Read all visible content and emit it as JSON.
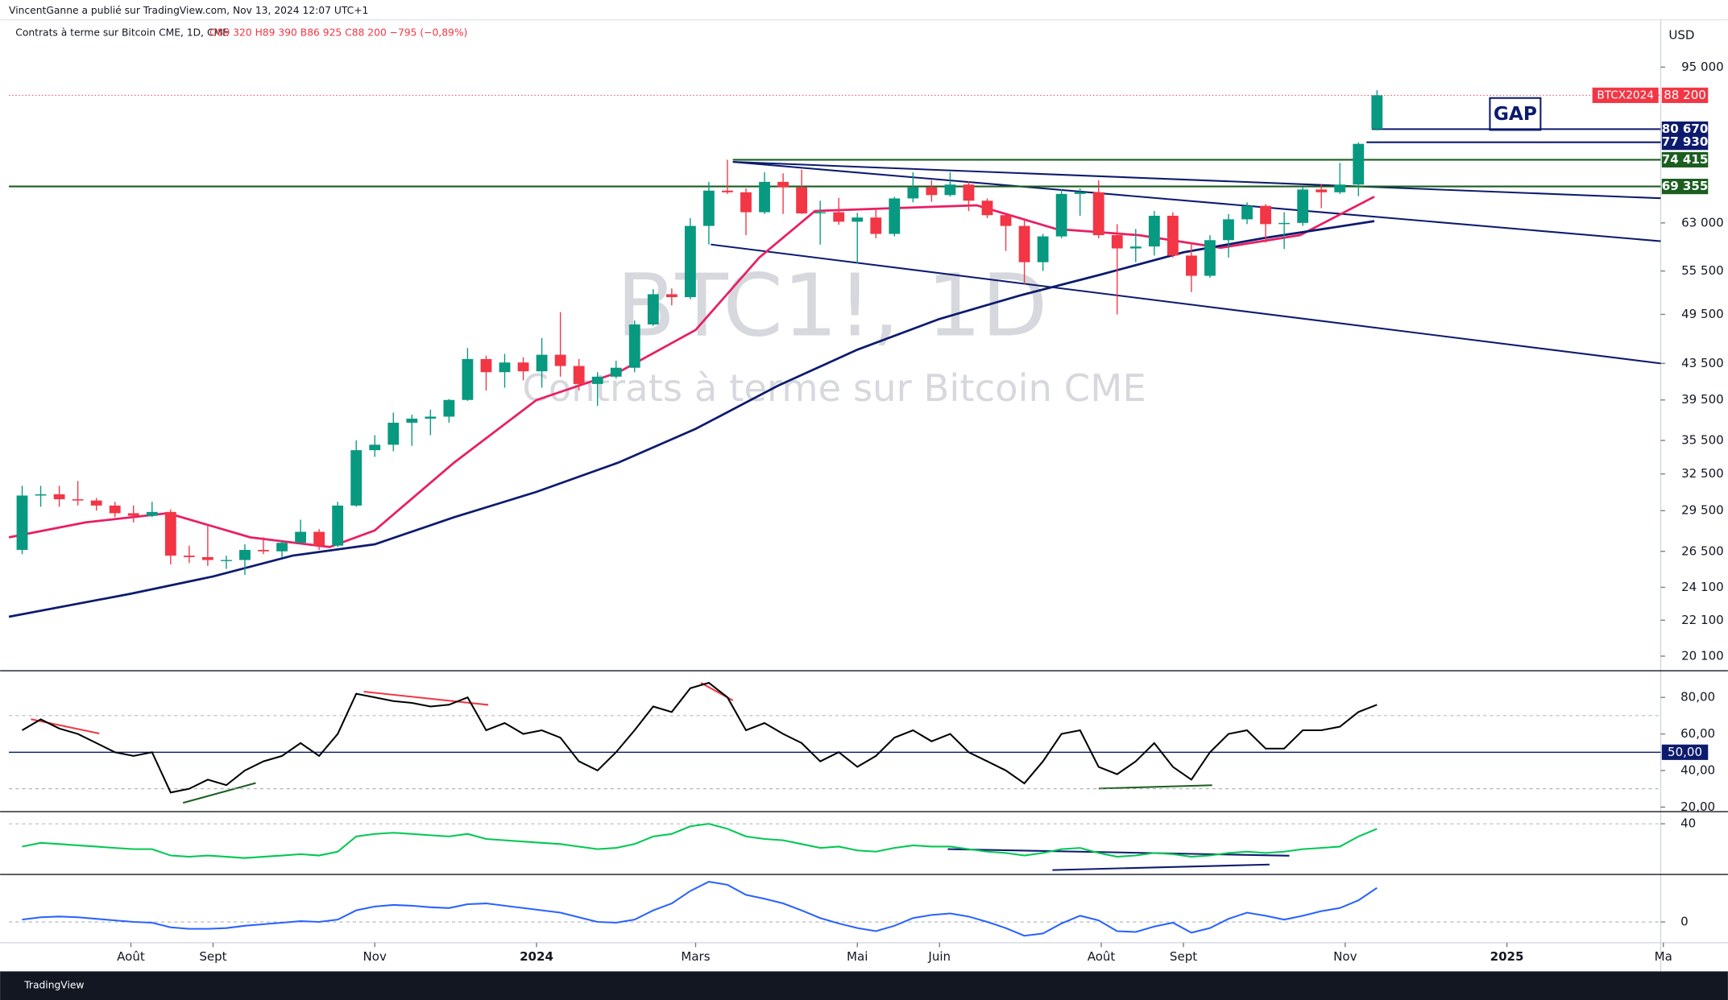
{
  "chart_data": {
    "type": "candlestick",
    "publisher": "VincentGanne a publié sur TradingView.com, Nov 13, 2024 12:07 UTC+1",
    "title": "Contrats à terme sur Bitcoin CME, 1D, CME",
    "ohlc_text": "O89 320 H89 390 B86 925 C88 200 −795 (−0,89%)",
    "currency": "USD",
    "watermark_title": "BTC1!, 1D",
    "watermark_subtitle": "Contrats à terme sur Bitcoin CME",
    "annotation": "GAP",
    "footer": "TradingView",
    "log_scale": true,
    "up_color": "#089981",
    "down_color": "#f23645",
    "xlim": [
      "2023-06-16",
      "2025-02-28"
    ],
    "xticks": [
      {
        "value": "2023-08-01",
        "label": "Août"
      },
      {
        "value": "2023-09-01",
        "label": "Sept"
      },
      {
        "value": "2023-11-01",
        "label": "Nov"
      },
      {
        "value": "2024-01-01",
        "label": "2024"
      },
      {
        "value": "2024-03-01",
        "label": "Mars"
      },
      {
        "value": "2024-05-01",
        "label": "Mai"
      },
      {
        "value": "2024-06-01",
        "label": "Juin"
      },
      {
        "value": "2024-08-01",
        "label": "Août"
      },
      {
        "value": "2024-09-01",
        "label": "Sept"
      },
      {
        "value": "2024-11-01",
        "label": "Nov"
      },
      {
        "value": "2025-01-01",
        "label": "2025"
      },
      {
        "value": "2025-03-01",
        "label": "Ma"
      }
    ],
    "ylim": [
      19400,
      107000
    ],
    "yticks": [
      {
        "value": 95000,
        "label": "95 000"
      },
      {
        "value": 63000,
        "label": "63 000"
      },
      {
        "value": 55500,
        "label": "55 500"
      },
      {
        "value": 49500,
        "label": "49 500"
      },
      {
        "value": 43500,
        "label": "43 500"
      },
      {
        "value": 39500,
        "label": "39 500"
      },
      {
        "value": 35500,
        "label": "35 500"
      },
      {
        "value": 32500,
        "label": "32 500"
      },
      {
        "value": 29500,
        "label": "29 500"
      },
      {
        "value": 26500,
        "label": "26 500"
      },
      {
        "value": 24100,
        "label": "24 100"
      },
      {
        "value": 22100,
        "label": "22 100"
      },
      {
        "value": 20100,
        "label": "20 100"
      }
    ],
    "x": [
      "2023-06-19",
      "2023-06-26",
      "2023-07-03",
      "2023-07-10",
      "2023-07-17",
      "2023-07-24",
      "2023-07-31",
      "2023-08-07",
      "2023-08-14",
      "2023-08-21",
      "2023-08-28",
      "2023-09-04",
      "2023-09-11",
      "2023-09-18",
      "2023-09-25",
      "2023-10-02",
      "2023-10-09",
      "2023-10-16",
      "2023-10-23",
      "2023-10-30",
      "2023-11-06",
      "2023-11-13",
      "2023-11-20",
      "2023-11-27",
      "2023-12-04",
      "2023-12-11",
      "2023-12-18",
      "2023-12-25",
      "2024-01-01",
      "2024-01-08",
      "2024-01-15",
      "2024-01-22",
      "2024-01-29",
      "2024-02-05",
      "2024-02-12",
      "2024-02-19",
      "2024-02-26",
      "2024-03-04",
      "2024-03-11",
      "2024-03-18",
      "2024-03-25",
      "2024-04-01",
      "2024-04-08",
      "2024-04-15",
      "2024-04-22",
      "2024-04-29",
      "2024-05-06",
      "2024-05-13",
      "2024-05-20",
      "2024-05-27",
      "2024-06-03",
      "2024-06-10",
      "2024-06-17",
      "2024-06-24",
      "2024-07-01",
      "2024-07-08",
      "2024-07-15",
      "2024-07-22",
      "2024-07-29",
      "2024-08-05",
      "2024-08-12",
      "2024-08-19",
      "2024-08-26",
      "2024-09-02",
      "2024-09-09",
      "2024-09-16",
      "2024-09-23",
      "2024-09-30",
      "2024-10-07",
      "2024-10-14",
      "2024-10-21",
      "2024-10-28",
      "2024-11-04",
      "2024-11-11"
    ],
    "open": [
      26600,
      30700,
      30800,
      30400,
      30300,
      29900,
      29300,
      29100,
      29400,
      26200,
      26100,
      25900,
      25900,
      26600,
      26500,
      27100,
      27900,
      26900,
      29900,
      34600,
      35100,
      37200,
      37600,
      37800,
      39500,
      44000,
      42500,
      43600,
      42600,
      44500,
      43200,
      41200,
      42000,
      43000,
      48200,
      52200,
      51800,
      62500,
      68600,
      68300,
      64800,
      70200,
      69200,
      64600,
      64800,
      63200,
      63900,
      61200,
      67200,
      69200,
      67800,
      69700,
      66800,
      64300,
      62500,
      56800,
      60800,
      68000,
      68300,
      61000,
      58900,
      59200,
      64200,
      57800,
      54800,
      60200,
      63600,
      65900,
      62800,
      63000,
      68800,
      68300,
      69700,
      80670
    ],
    "high": [
      31500,
      31500,
      31500,
      31900,
      30500,
      30200,
      29900,
      30200,
      29600,
      26900,
      28400,
      26200,
      27000,
      27500,
      27300,
      28800,
      28100,
      30200,
      35500,
      36000,
      38200,
      38000,
      38500,
      39600,
      45300,
      44400,
      44600,
      44200,
      46500,
      49800,
      44000,
      42500,
      43800,
      48700,
      52900,
      53000,
      63800,
      70200,
      74415,
      69000,
      72000,
      71800,
      72500,
      66800,
      67300,
      64700,
      65600,
      67500,
      72000,
      70500,
      72000,
      70300,
      67200,
      64500,
      63800,
      61200,
      68800,
      69000,
      70500,
      62800,
      62000,
      65000,
      64800,
      59800,
      61000,
      64500,
      66500,
      66200,
      64800,
      69200,
      69800,
      73800,
      77930,
      89390
    ],
    "low": [
      26300,
      29800,
      29800,
      29900,
      29500,
      29000,
      28600,
      29000,
      25600,
      25700,
      25500,
      25300,
      24900,
      26300,
      26100,
      27100,
      26600,
      26800,
      29800,
      34000,
      34500,
      35000,
      36000,
      37200,
      39400,
      40500,
      40800,
      41600,
      40800,
      42000,
      40500,
      38900,
      41800,
      42500,
      48000,
      50700,
      51500,
      59500,
      68000,
      61000,
      64500,
      64500,
      64500,
      59500,
      62700,
      56600,
      60500,
      60800,
      66500,
      66600,
      67500,
      65000,
      63800,
      58500,
      53600,
      55500,
      60500,
      64200,
      60500,
      49500,
      56800,
      57800,
      57500,
      52500,
      54500,
      57500,
      62800,
      59800,
      58800,
      62500,
      65500,
      68000,
      67600,
      80400
    ],
    "close": [
      30700,
      30800,
      30400,
      30300,
      29900,
      29300,
      29100,
      29400,
      26200,
      26100,
      25900,
      25900,
      26600,
      26500,
      27100,
      27900,
      26900,
      29900,
      34600,
      35100,
      37200,
      37600,
      37800,
      39500,
      44000,
      42500,
      43600,
      42600,
      44500,
      43200,
      41200,
      42000,
      43000,
      48200,
      52200,
      51800,
      62500,
      68600,
      68300,
      64800,
      70200,
      69200,
      64600,
      64800,
      63200,
      63900,
      61200,
      67200,
      69200,
      67800,
      69700,
      66800,
      64300,
      62500,
      56800,
      60800,
      68000,
      68300,
      61000,
      58900,
      59200,
      64200,
      57800,
      54800,
      60200,
      63600,
      65900,
      62800,
      63000,
      68800,
      68300,
      69700,
      77600,
      88200
    ],
    "moving_averages": [
      {
        "color": "#e91e63",
        "x": [
          "2023-06-16",
          "2023-07-15",
          "2023-08-15",
          "2023-09-15",
          "2023-10-15",
          "2023-11-01",
          "2023-12-01",
          "2024-01-01",
          "2024-02-01",
          "2024-03-01",
          "2024-03-25",
          "2024-04-15",
          "2024-05-15",
          "2024-06-15",
          "2024-07-15",
          "2024-08-15",
          "2024-09-15",
          "2024-10-15",
          "2024-11-12"
        ],
        "values": [
          27500,
          28600,
          29300,
          27500,
          26800,
          28000,
          33500,
          39500,
          42500,
          47500,
          57500,
          65000,
          65500,
          66000,
          62000,
          61000,
          59000,
          61000,
          67500
        ]
      },
      {
        "color": "#0d1b6e",
        "x": [
          "2023-06-16",
          "2023-08-01",
          "2023-09-01",
          "2023-10-01",
          "2023-11-01",
          "2023-12-01",
          "2024-01-01",
          "2024-02-01",
          "2024-03-01",
          "2024-04-01",
          "2024-05-01",
          "2024-06-01",
          "2024-07-01",
          "2024-08-01",
          "2024-09-01",
          "2024-10-01",
          "2024-11-12"
        ],
        "values": [
          22300,
          23700,
          24800,
          26200,
          27000,
          29000,
          31000,
          33500,
          36600,
          41000,
          45100,
          48900,
          52000,
          55000,
          58300,
          60500,
          63300
        ]
      }
    ],
    "levels": [
      {
        "value": 80670,
        "label": "80 670",
        "color": "#0d1b6e"
      },
      {
        "value": 77930,
        "label": "77 930",
        "color": "#0d1b6e"
      },
      {
        "value": 74415,
        "label": "74 415",
        "color": "#1b5e20"
      },
      {
        "value": 69355,
        "label": "69 355",
        "color": "#1b5e20"
      }
    ],
    "last_price": {
      "name": "BTCX2024",
      "value": 88200,
      "label": "88 200",
      "color": "#f23645"
    },
    "panes": [
      {
        "type": "line",
        "color": "#000000",
        "ylim": [
          17.5,
          94
        ],
        "yticks": [
          {
            "value": 80,
            "label": "80,00"
          },
          {
            "value": 60,
            "label": "60,00"
          },
          {
            "value": 40,
            "label": "40,00"
          },
          {
            "value": 20,
            "label": "20,00"
          }
        ],
        "midline": {
          "value": 50,
          "label": "50,00"
        },
        "bands": [
          30,
          70
        ],
        "values": [
          62,
          68,
          63,
          60,
          55,
          50,
          48,
          50,
          28,
          30,
          35,
          32,
          40,
          45,
          48,
          55,
          48,
          60,
          82,
          80,
          78,
          77,
          75,
          76,
          80,
          62,
          66,
          60,
          62,
          58,
          45,
          40,
          50,
          62,
          75,
          72,
          85,
          88,
          80,
          62,
          66,
          60,
          55,
          45,
          50,
          42,
          48,
          58,
          62,
          56,
          60,
          50,
          45,
          40,
          33,
          45,
          60,
          62,
          42,
          38,
          45,
          55,
          42,
          35,
          50,
          60,
          62,
          52,
          52,
          62,
          62,
          64,
          72,
          76
        ]
      },
      {
        "type": "line",
        "color": "#00c853",
        "ylim": [
          0,
          48.7
        ],
        "yticks": [
          40
        ],
        "values": [
          22,
          25,
          24,
          23,
          22,
          21,
          20,
          20,
          15,
          14,
          15,
          14,
          13,
          14,
          15,
          16,
          15,
          18,
          30,
          32,
          33,
          32,
          31,
          30,
          32,
          28,
          27,
          26,
          25,
          24,
          22,
          20,
          21,
          24,
          30,
          32,
          38,
          40,
          36,
          30,
          28,
          27,
          24,
          21,
          22,
          19,
          18,
          21,
          23,
          22,
          22,
          20,
          18,
          17,
          15,
          17,
          20,
          21,
          17,
          14,
          15,
          17,
          16,
          14,
          15,
          17,
          18,
          17,
          18,
          20,
          21,
          22,
          30,
          36
        ]
      },
      {
        "type": "line",
        "color": "#2962ff",
        "ylim": [
          -2550,
          6000
        ],
        "yticks": [
          0
        ],
        "values": [
          300,
          600,
          700,
          600,
          400,
          200,
          0,
          -100,
          -700,
          -900,
          -900,
          -800,
          -500,
          -300,
          -100,
          100,
          0,
          300,
          1500,
          2000,
          2200,
          2100,
          1900,
          1800,
          2300,
          2400,
          2100,
          1800,
          1500,
          1200,
          600,
          0,
          -100,
          300,
          1500,
          2400,
          4000,
          5200,
          4800,
          3500,
          3000,
          2400,
          1500,
          500,
          -200,
          -800,
          -1200,
          -500,
          500,
          900,
          1100,
          700,
          0,
          -800,
          -1800,
          -1500,
          -200,
          800,
          200,
          -1200,
          -1300,
          -600,
          -100,
          -1400,
          -800,
          400,
          1200,
          800,
          300,
          800,
          1400,
          1800,
          2800,
          4400
        ]
      }
    ]
  }
}
